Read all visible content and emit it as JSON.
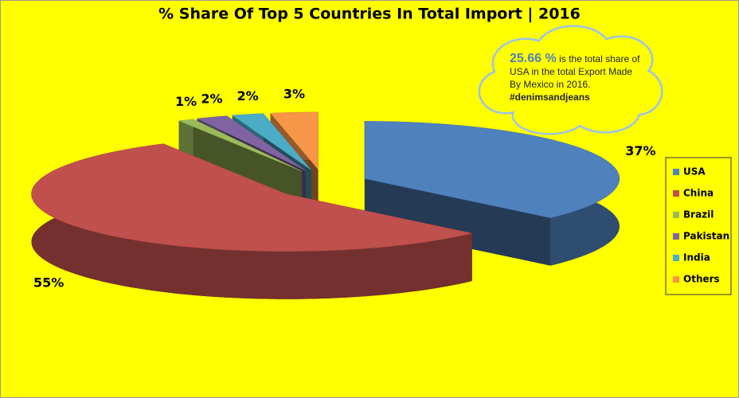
{
  "chart_data": {
    "type": "pie3d",
    "title": "% Share Of Top 5 Countries In Total Import | 2016",
    "categories": [
      "USA",
      "China",
      "Brazil",
      "Pakistan",
      "India",
      "Others"
    ],
    "values": [
      37,
      55,
      1,
      2,
      2,
      3
    ],
    "value_labels": [
      "37%",
      "55%",
      "1%",
      "2%",
      "2%",
      "3%"
    ],
    "colors": [
      "#4f81bd",
      "#c0504d",
      "#9bbb59",
      "#8064a2",
      "#4bacc6",
      "#f79646"
    ],
    "legend": "right",
    "annotation": {
      "highlight": "25.66 %",
      "text": "is the total share of USA in the total Export Made By Mexico in 2016.",
      "tag": "#denimsandjeans"
    }
  }
}
